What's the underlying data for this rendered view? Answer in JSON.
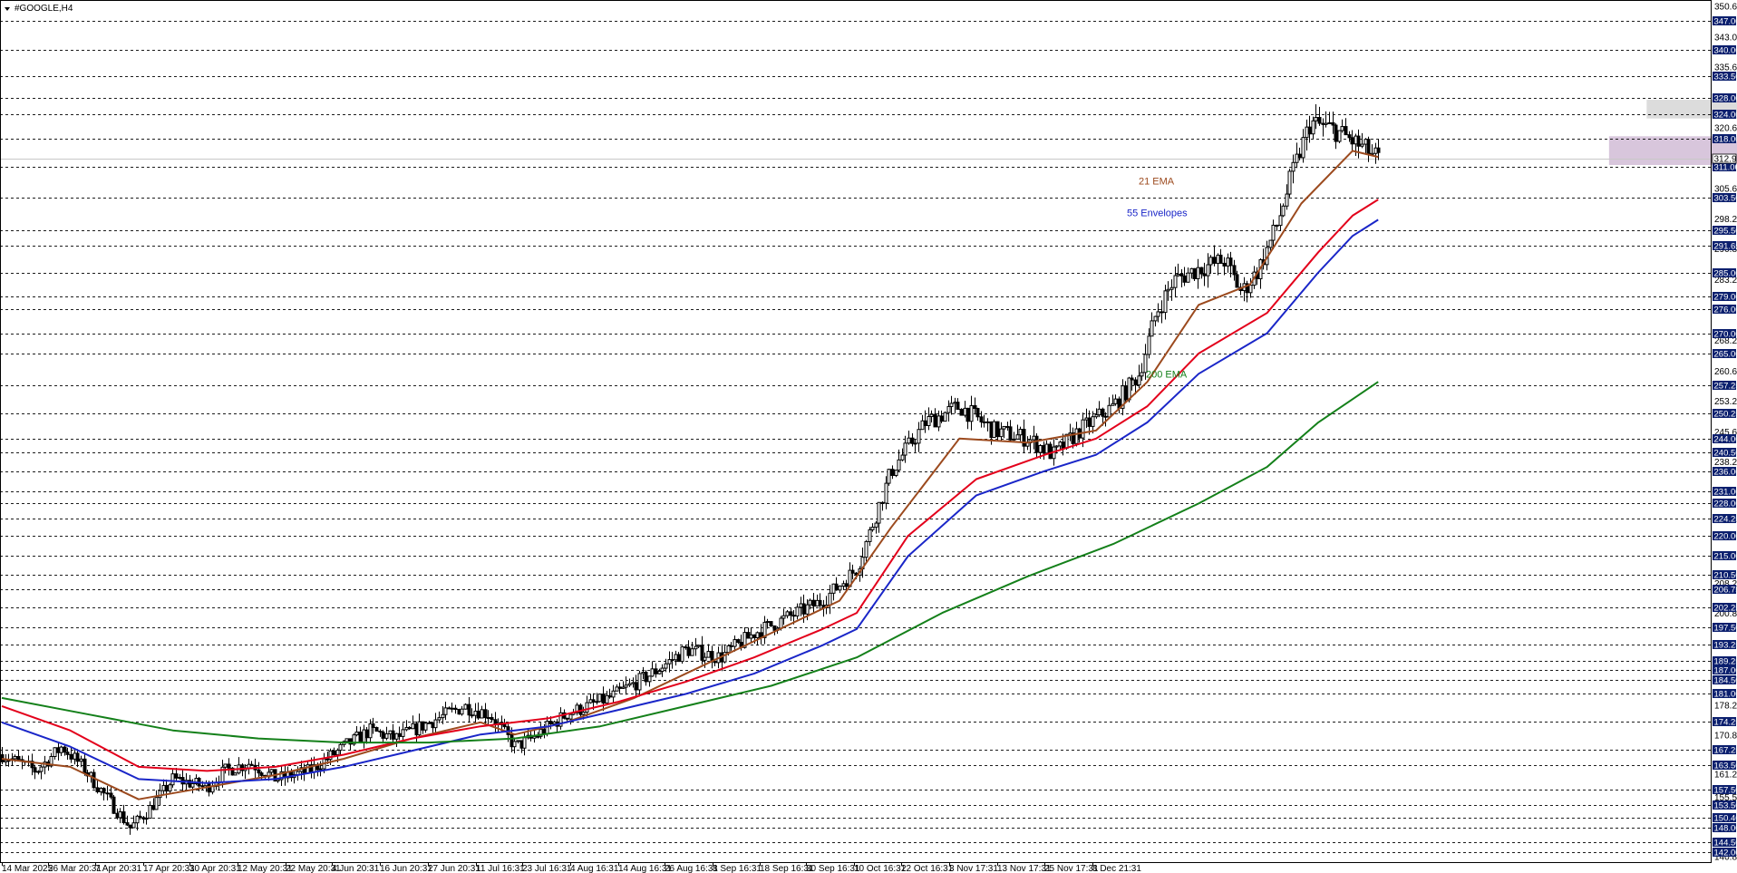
{
  "window": {
    "title": "#GOOGLE,H4"
  },
  "colors": {
    "background": "#ffffff",
    "grid": "#1c1c1c",
    "candle": "#000000",
    "ema21": "#9c4a1e",
    "env_upper": "#e3001b",
    "env_lower": "#1a26c8",
    "ema200": "#14801a",
    "highlight_box": "#0b1f6e",
    "highlight_text": "#ffffff",
    "zone_resistance": "#dcdcdc",
    "zone_support": "#d8c6dc",
    "current_price_line": "#c8c8c8"
  },
  "chart_data": {
    "type": "candlestick",
    "symbol": "#GOOGLE",
    "timeframe": "H4",
    "ylim": [
      139.5,
      352
    ],
    "x_labels": [
      "14 Mar 2025",
      "26 Mar 20:31",
      "7 Apr 20:31",
      "17 Apr 20:31",
      "30 Apr 20:31",
      "12 May 20:31",
      "22 May 20:31",
      "4 Jun 20:31",
      "16 Jun 20:31",
      "27 Jun 20:31",
      "11 Jul 16:31",
      "23 Jul 16:31",
      "4 Aug 16:31",
      "14 Aug 16:31",
      "26 Aug 16:31",
      "8 Sep 16:31",
      "18 Sep 16:31",
      "30 Sep 16:31",
      "10 Oct 16:31",
      "22 Oct 16:31",
      "3 Nov 17:31",
      "13 Nov 17:31",
      "25 Nov 17:31",
      "8 Dec 21:31"
    ],
    "y_ticks": [
      "350.65",
      "343.05",
      "335.65",
      "320.65",
      "305.65",
      "298.25",
      "290.85",
      "283.25",
      "268.25",
      "260.65",
      "253.25",
      "245.65",
      "238.25",
      "224.25",
      "208.25",
      "200.85",
      "193.25",
      "189.25",
      "184.50",
      "178.25",
      "170.85",
      "161.25",
      "155.50",
      "140.80"
    ],
    "highlight_levels": [
      "347.00",
      "340.00",
      "333.50",
      "328.00",
      "324.00",
      "318.00",
      "311.00",
      "303.50",
      "295.50",
      "291.65",
      "285.00",
      "279.00",
      "276.00",
      "270.00",
      "265.00",
      "257.25",
      "250.25",
      "244.00",
      "240.50",
      "236.00",
      "231.00",
      "228.00",
      "224.25",
      "220.00",
      "215.00",
      "210.50",
      "206.75",
      "202.25",
      "197.50",
      "193.25",
      "189.25",
      "187.00",
      "184.50",
      "181.00",
      "174.25",
      "167.25",
      "163.50",
      "157.50",
      "153.50",
      "150.40",
      "148.00",
      "144.50",
      "142.00"
    ],
    "grid_levels": [
      347.0,
      340.0,
      333.5,
      328.0,
      324.0,
      318.0,
      311.0,
      303.5,
      295.5,
      291.65,
      285.0,
      279.0,
      276.0,
      270.0,
      265.0,
      257.25,
      250.25,
      244.0,
      240.5,
      236.0,
      231.0,
      228.0,
      224.25,
      220.0,
      215.0,
      210.5,
      206.75,
      202.25,
      197.5,
      193.25,
      189.25,
      187.0,
      184.5,
      181.0,
      174.25,
      167.25,
      163.5,
      157.5,
      153.5,
      150.4,
      148.0,
      144.5,
      142.0
    ],
    "current_price": "312.97",
    "annotations": [
      {
        "text": "21 EMA",
        "color": "#9c4a1e",
        "price": 307.6
      },
      {
        "text": "55 Envelopes",
        "color": "#1a26c8",
        "price": 299.8
      },
      {
        "text": "200 EMA",
        "color": "#14801a",
        "price": 260.0
      }
    ],
    "zones": [
      {
        "name": "resistance-zone",
        "from": 323.0,
        "to": 327.6,
        "start_fraction": 0.962,
        "end_fraction": 1.015
      },
      {
        "name": "support-zone",
        "from": 311.5,
        "to": 318.6,
        "start_fraction": 0.94,
        "end_fraction": 1.029
      }
    ],
    "price_path": [
      {
        "t": 0.0,
        "p": 166
      },
      {
        "t": 0.02,
        "p": 162
      },
      {
        "t": 0.035,
        "p": 168
      },
      {
        "t": 0.045,
        "p": 164
      },
      {
        "t": 0.06,
        "p": 156
      },
      {
        "t": 0.075,
        "p": 148
      },
      {
        "t": 0.085,
        "p": 152
      },
      {
        "t": 0.1,
        "p": 160
      },
      {
        "t": 0.12,
        "p": 158
      },
      {
        "t": 0.13,
        "p": 162
      },
      {
        "t": 0.145,
        "p": 164
      },
      {
        "t": 0.16,
        "p": 160
      },
      {
        "t": 0.18,
        "p": 162
      },
      {
        "t": 0.2,
        "p": 168
      },
      {
        "t": 0.215,
        "p": 172
      },
      {
        "t": 0.23,
        "p": 170
      },
      {
        "t": 0.25,
        "p": 174
      },
      {
        "t": 0.27,
        "p": 178
      },
      {
        "t": 0.285,
        "p": 176
      },
      {
        "t": 0.3,
        "p": 168
      },
      {
        "t": 0.31,
        "p": 170
      },
      {
        "t": 0.33,
        "p": 176
      },
      {
        "t": 0.355,
        "p": 180
      },
      {
        "t": 0.38,
        "p": 186
      },
      {
        "t": 0.4,
        "p": 192
      },
      {
        "t": 0.42,
        "p": 190
      },
      {
        "t": 0.44,
        "p": 196
      },
      {
        "t": 0.46,
        "p": 200
      },
      {
        "t": 0.48,
        "p": 204
      },
      {
        "t": 0.5,
        "p": 212
      },
      {
        "t": 0.52,
        "p": 236
      },
      {
        "t": 0.54,
        "p": 248
      },
      {
        "t": 0.56,
        "p": 252
      },
      {
        "t": 0.58,
        "p": 246
      },
      {
        "t": 0.6,
        "p": 244
      },
      {
        "t": 0.615,
        "p": 240
      },
      {
        "t": 0.63,
        "p": 246
      },
      {
        "t": 0.65,
        "p": 252
      },
      {
        "t": 0.665,
        "p": 260
      },
      {
        "t": 0.675,
        "p": 275
      },
      {
        "t": 0.685,
        "p": 283
      },
      {
        "t": 0.7,
        "p": 286
      },
      {
        "t": 0.715,
        "p": 288
      },
      {
        "t": 0.725,
        "p": 280
      },
      {
        "t": 0.735,
        "p": 286
      },
      {
        "t": 0.745,
        "p": 296
      },
      {
        "t": 0.755,
        "p": 310
      },
      {
        "t": 0.765,
        "p": 322
      },
      {
        "t": 0.78,
        "p": 320
      },
      {
        "t": 0.795,
        "p": 316
      },
      {
        "t": 0.805,
        "p": 313
      }
    ],
    "series": [
      {
        "name": "21 EMA",
        "color": "#9c4a1e",
        "points": [
          {
            "t": 0.0,
            "p": 165
          },
          {
            "t": 0.04,
            "p": 163
          },
          {
            "t": 0.08,
            "p": 155
          },
          {
            "t": 0.12,
            "p": 158
          },
          {
            "t": 0.16,
            "p": 161
          },
          {
            "t": 0.2,
            "p": 165
          },
          {
            "t": 0.24,
            "p": 170
          },
          {
            "t": 0.28,
            "p": 174
          },
          {
            "t": 0.3,
            "p": 171
          },
          {
            "t": 0.33,
            "p": 174
          },
          {
            "t": 0.37,
            "p": 180
          },
          {
            "t": 0.41,
            "p": 188
          },
          {
            "t": 0.45,
            "p": 196
          },
          {
            "t": 0.49,
            "p": 204
          },
          {
            "t": 0.52,
            "p": 222
          },
          {
            "t": 0.56,
            "p": 244
          },
          {
            "t": 0.6,
            "p": 243
          },
          {
            "t": 0.64,
            "p": 246
          },
          {
            "t": 0.67,
            "p": 258
          },
          {
            "t": 0.7,
            "p": 277
          },
          {
            "t": 0.73,
            "p": 282
          },
          {
            "t": 0.76,
            "p": 302
          },
          {
            "t": 0.79,
            "p": 315
          },
          {
            "t": 0.805,
            "p": 313.5
          }
        ]
      },
      {
        "name": "Envelope Upper",
        "color": "#e3001b",
        "points": [
          {
            "t": 0.0,
            "p": 178
          },
          {
            "t": 0.04,
            "p": 172
          },
          {
            "t": 0.08,
            "p": 163
          },
          {
            "t": 0.12,
            "p": 162
          },
          {
            "t": 0.16,
            "p": 163
          },
          {
            "t": 0.2,
            "p": 166
          },
          {
            "t": 0.24,
            "p": 170
          },
          {
            "t": 0.28,
            "p": 173
          },
          {
            "t": 0.32,
            "p": 175
          },
          {
            "t": 0.36,
            "p": 179
          },
          {
            "t": 0.4,
            "p": 184
          },
          {
            "t": 0.44,
            "p": 190
          },
          {
            "t": 0.48,
            "p": 197
          },
          {
            "t": 0.5,
            "p": 201
          },
          {
            "t": 0.53,
            "p": 220
          },
          {
            "t": 0.57,
            "p": 234
          },
          {
            "t": 0.61,
            "p": 240
          },
          {
            "t": 0.64,
            "p": 244
          },
          {
            "t": 0.67,
            "p": 252
          },
          {
            "t": 0.7,
            "p": 265
          },
          {
            "t": 0.74,
            "p": 275
          },
          {
            "t": 0.77,
            "p": 290
          },
          {
            "t": 0.79,
            "p": 299
          },
          {
            "t": 0.805,
            "p": 303
          }
        ]
      },
      {
        "name": "Envelope Lower",
        "color": "#1a26c8",
        "points": [
          {
            "t": 0.0,
            "p": 174
          },
          {
            "t": 0.04,
            "p": 168
          },
          {
            "t": 0.08,
            "p": 160
          },
          {
            "t": 0.12,
            "p": 159
          },
          {
            "t": 0.16,
            "p": 160
          },
          {
            "t": 0.2,
            "p": 163
          },
          {
            "t": 0.24,
            "p": 167
          },
          {
            "t": 0.28,
            "p": 171
          },
          {
            "t": 0.32,
            "p": 173
          },
          {
            "t": 0.36,
            "p": 177
          },
          {
            "t": 0.4,
            "p": 181
          },
          {
            "t": 0.44,
            "p": 186
          },
          {
            "t": 0.48,
            "p": 193
          },
          {
            "t": 0.5,
            "p": 197
          },
          {
            "t": 0.53,
            "p": 215
          },
          {
            "t": 0.57,
            "p": 230
          },
          {
            "t": 0.61,
            "p": 236
          },
          {
            "t": 0.64,
            "p": 240
          },
          {
            "t": 0.67,
            "p": 248
          },
          {
            "t": 0.7,
            "p": 260
          },
          {
            "t": 0.74,
            "p": 270
          },
          {
            "t": 0.77,
            "p": 285
          },
          {
            "t": 0.79,
            "p": 294
          },
          {
            "t": 0.805,
            "p": 298
          }
        ]
      },
      {
        "name": "200 EMA",
        "color": "#14801a",
        "points": [
          {
            "t": 0.0,
            "p": 180
          },
          {
            "t": 0.05,
            "p": 176
          },
          {
            "t": 0.1,
            "p": 172
          },
          {
            "t": 0.15,
            "p": 170
          },
          {
            "t": 0.2,
            "p": 169
          },
          {
            "t": 0.25,
            "p": 169
          },
          {
            "t": 0.3,
            "p": 170
          },
          {
            "t": 0.35,
            "p": 173
          },
          {
            "t": 0.4,
            "p": 178
          },
          {
            "t": 0.45,
            "p": 183
          },
          {
            "t": 0.5,
            "p": 190
          },
          {
            "t": 0.55,
            "p": 201
          },
          {
            "t": 0.6,
            "p": 210
          },
          {
            "t": 0.65,
            "p": 218
          },
          {
            "t": 0.7,
            "p": 228
          },
          {
            "t": 0.74,
            "p": 237
          },
          {
            "t": 0.77,
            "p": 248
          },
          {
            "t": 0.805,
            "p": 258
          }
        ]
      }
    ]
  }
}
